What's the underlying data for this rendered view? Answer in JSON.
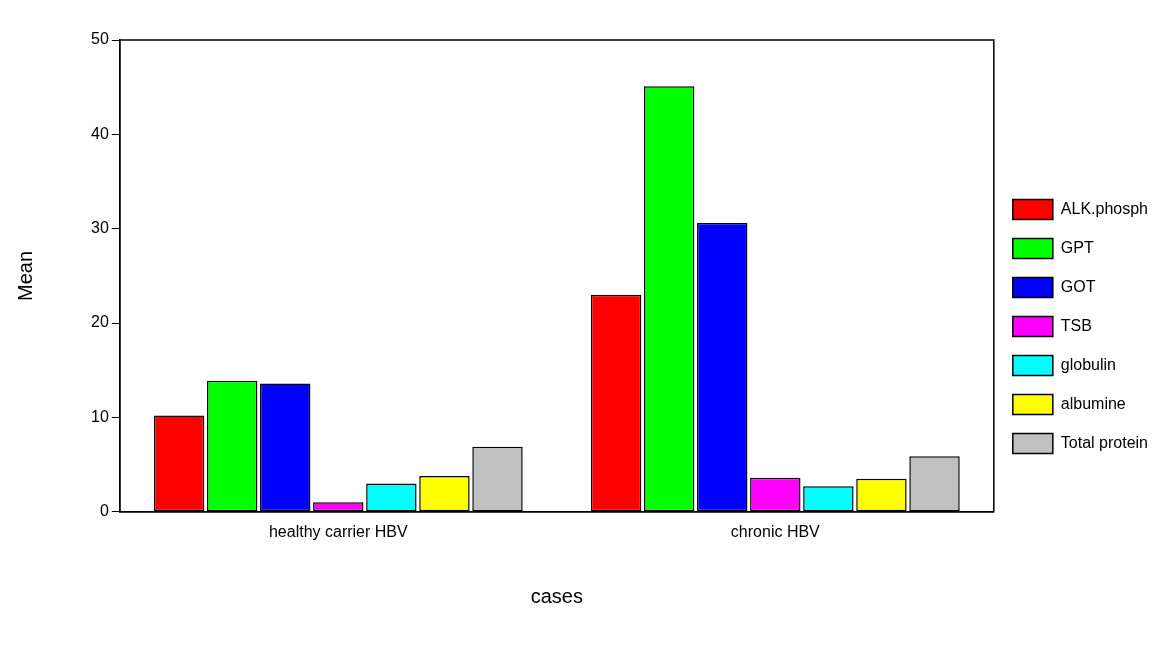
{
  "chart_data": {
    "type": "bar",
    "xlabel": "cases",
    "ylabel": "Mean",
    "categories": [
      "healthy carrier HBV",
      "chronic HBV"
    ],
    "series": [
      {
        "name": "ALK.phosph",
        "color": "#ff0000",
        "values": [
          10.2,
          23.0
        ]
      },
      {
        "name": "GPT",
        "color": "#00ff00",
        "values": [
          13.9,
          45.1
        ]
      },
      {
        "name": "GOT",
        "color": "#0000ff",
        "values": [
          13.6,
          30.6
        ]
      },
      {
        "name": "TSB",
        "color": "#ff00ff",
        "values": [
          1.0,
          3.6
        ]
      },
      {
        "name": "globulin",
        "color": "#00ffff",
        "values": [
          3.0,
          2.7
        ]
      },
      {
        "name": "albumine",
        "color": "#ffff00",
        "values": [
          3.8,
          3.5
        ]
      },
      {
        "name": "Total protein",
        "color": "#c0c0c0",
        "values": [
          6.9,
          5.9
        ]
      }
    ],
    "ylim": [
      0,
      50
    ],
    "yticks": [
      0,
      10,
      20,
      30,
      40,
      50
    ],
    "grid": false,
    "legend": "right"
  }
}
